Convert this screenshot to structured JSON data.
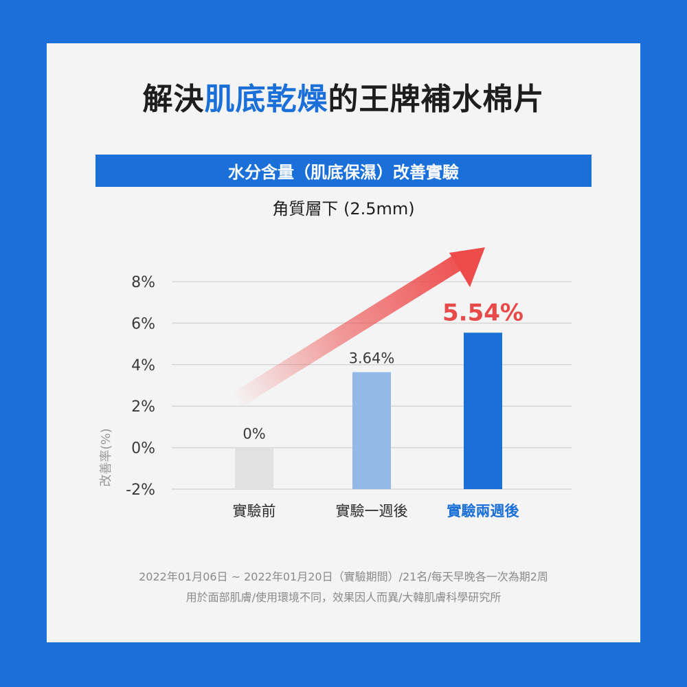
{
  "headline": {
    "prefix": "解決",
    "highlight": "肌底乾燥",
    "suffix": "的王牌補水棉片"
  },
  "banner": "水分含量（肌底保濕）改善實驗",
  "subtitle": "角質層下 (2.5mm)",
  "colors": {
    "background": "#1a6fd8",
    "card": "#f4f4f4",
    "bar_before": "#e1e1e1",
    "bar_week1": "#93b9e6",
    "bar_week2": "#1a6fd8",
    "highlight_value": "#e84a4a",
    "arrow": "#ee4b4b"
  },
  "chart_data": {
    "type": "bar",
    "ylabel": "改善率(%)",
    "ylim": [
      -2,
      8
    ],
    "yticks": [
      8,
      6,
      4,
      2,
      0,
      -2
    ],
    "ytick_labels": [
      "8%",
      "6%",
      "4%",
      "2%",
      "0%",
      "-2%"
    ],
    "grid": true,
    "categories": [
      "實驗前",
      "實驗一週後",
      "實驗兩週後"
    ],
    "values": [
      0,
      3.64,
      5.54
    ],
    "data_labels": [
      "0%",
      "3.64%",
      "5.54%"
    ],
    "highlight_index": 2,
    "trend_arrow": "increasing"
  },
  "notes": [
    "2022年01月06日 ~ 2022年01月20日（實驗期間）/21名/每天早晚各一次為期2周",
    "用於面部肌膚/使用環境不同，效果因人而異/大韓肌膚科學研究所"
  ]
}
